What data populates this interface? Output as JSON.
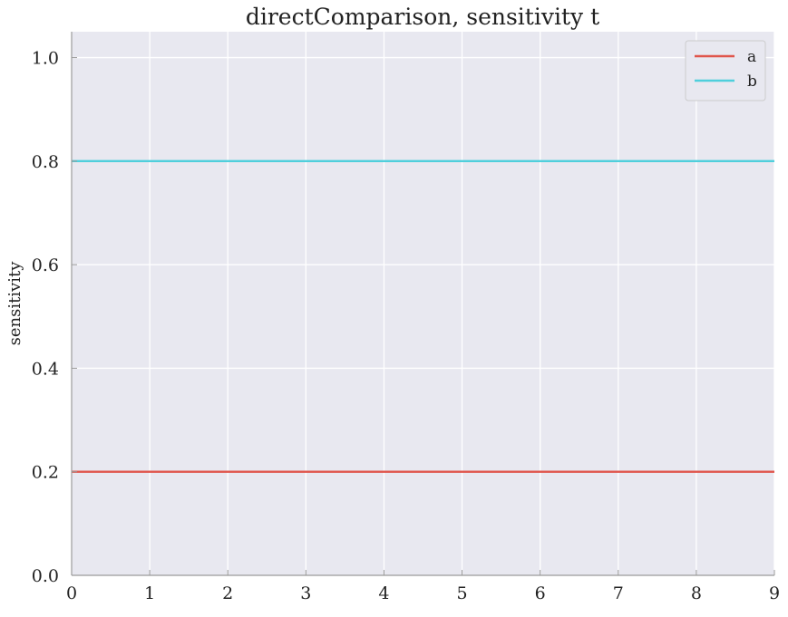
{
  "chart_data": {
    "type": "line",
    "title": "directComparison, sensitivity t",
    "xlabel": "",
    "ylabel": "sensitivity",
    "xlim": [
      0,
      9
    ],
    "ylim": [
      0.0,
      1.05
    ],
    "xticks": [
      0,
      1,
      2,
      3,
      4,
      5,
      6,
      7,
      8,
      9
    ],
    "yticks": [
      0.0,
      0.2,
      0.4,
      0.6,
      0.8,
      1.0
    ],
    "xtick_labels": [
      "0",
      "1",
      "2",
      "3",
      "4",
      "5",
      "6",
      "7",
      "8",
      "9"
    ],
    "ytick_labels": [
      "0.0",
      "0.2",
      "0.4",
      "0.6",
      "0.8",
      "1.0"
    ],
    "grid": true,
    "legend_position": "top-right",
    "x": [
      0,
      1,
      2,
      3,
      4,
      5,
      6,
      7,
      8,
      9
    ],
    "series": [
      {
        "name": "a",
        "color": "#e0554b",
        "values": [
          0.2,
          0.2,
          0.2,
          0.2,
          0.2,
          0.2,
          0.2,
          0.2,
          0.2,
          0.2
        ]
      },
      {
        "name": "b",
        "color": "#4fcfdc",
        "values": [
          0.8,
          0.8,
          0.8,
          0.8,
          0.8,
          0.8,
          0.8,
          0.8,
          0.8,
          0.8
        ]
      }
    ],
    "colors": {
      "plot_background": "#e8e8f0",
      "grid": "#ffffff",
      "axis": "#999999"
    }
  }
}
